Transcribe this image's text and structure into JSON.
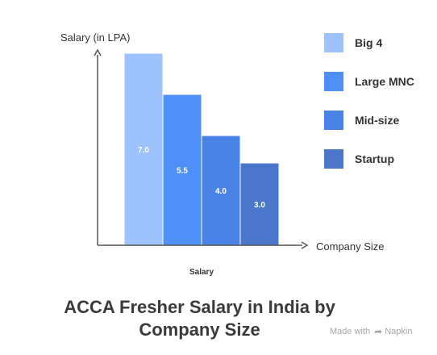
{
  "chart_data": {
    "type": "bar",
    "title": [
      "ACCA Fresher Salary in India by",
      "Company Size"
    ],
    "ylabel": "Salary (in LPA)",
    "xlabel": "Company Size",
    "axis_caption": "Salary",
    "categories": [
      "Big 4",
      "Large MNC",
      "Mid-size",
      "Startup"
    ],
    "values": [
      7.0,
      5.5,
      4.0,
      3.0
    ],
    "value_labels": [
      "7.0",
      "5.5",
      "4.0",
      "3.0"
    ],
    "colors": [
      "#9ec2fb",
      "#4e8ff8",
      "#4a83e6",
      "#4b76c9"
    ],
    "ylim": [
      0,
      7.5
    ],
    "grid": false,
    "legend_position": "right"
  },
  "watermark": {
    "prefix": "Made with",
    "icon": "napkin-feather-icon",
    "brand": "Napkin"
  }
}
